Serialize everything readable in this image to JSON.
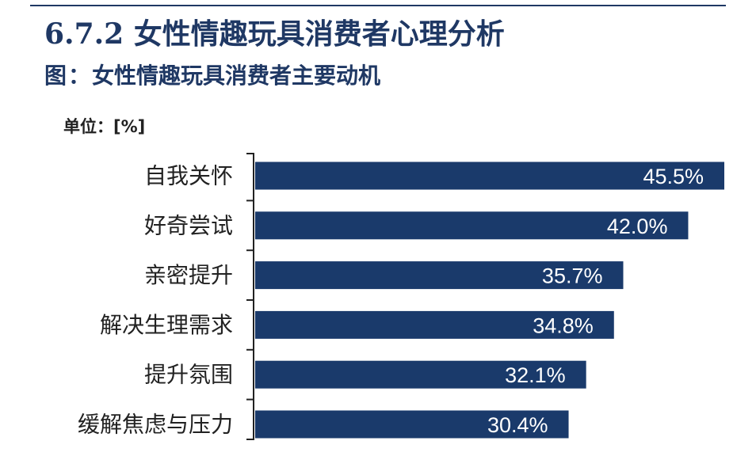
{
  "header": {
    "section_title": "6.7.2 女性情趣玩具消费者心理分析",
    "figure_prefix": "图",
    "figure_colon": "：",
    "figure_title": "女性情趣玩具消费者主要动机",
    "unit_label": "单位：",
    "unit_value": "[%]"
  },
  "colors": {
    "bar": "#1a3a6b",
    "heading": "#1f3864",
    "axis": "#222222",
    "value_label": "#ffffff"
  },
  "chart_data": {
    "type": "bar",
    "orientation": "horizontal",
    "title": "女性情趣玩具消费者主要动机",
    "unit": "%",
    "categories": [
      "自我关怀",
      "好奇尝试",
      "亲密提升",
      "解决生理需求",
      "提升氛围",
      "缓解焦虑与压力"
    ],
    "values": [
      45.5,
      42.0,
      35.7,
      34.8,
      32.1,
      30.4
    ],
    "value_labels": [
      "45.5%",
      "42.0%",
      "35.7%",
      "34.8%",
      "32.1%",
      "30.4%"
    ],
    "xlim": [
      0,
      45.5
    ],
    "grid": false,
    "legend": "none"
  }
}
